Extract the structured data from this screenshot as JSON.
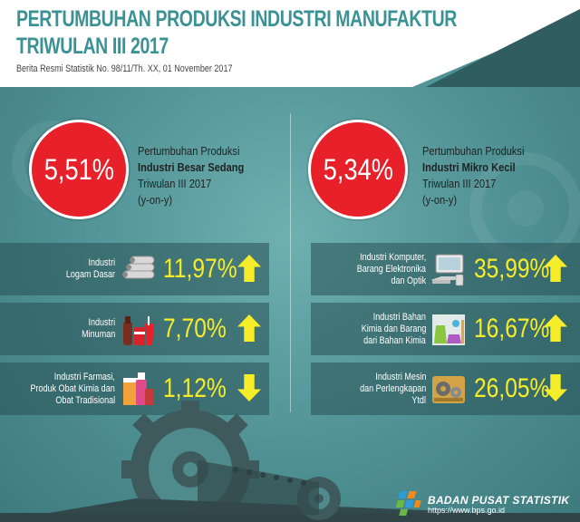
{
  "header": {
    "title_line1": "PERTUMBUHAN PRODUKSI INDUSTRI MANUFAKTUR",
    "title_line2": "TRIWULAN III 2017",
    "subtitle": "Berita Resmi Statistik No. 98/11/Th. XX, 01 November 2017"
  },
  "left": {
    "percent": "5,51%",
    "line1": "Pertumbuhan Produksi",
    "line2": "Industri Besar Sedang",
    "line3": "Triwulan III 2017",
    "line4": "(y-on-y)",
    "rows": [
      {
        "label": [
          "Industri",
          "Logam Dasar"
        ],
        "value": "11,97%",
        "direction": "up",
        "icon": "metal-pipes-icon"
      },
      {
        "label": [
          "Industri",
          "Minuman"
        ],
        "value": "7,70%",
        "direction": "up",
        "icon": "beverage-icon"
      },
      {
        "label": [
          "Industri Farmasi,",
          "Produk Obat Kimia dan",
          "Obat Tradisional"
        ],
        "value": "1,12%",
        "direction": "down",
        "icon": "medicine-icon"
      }
    ]
  },
  "right": {
    "percent": "5,34%",
    "line1": "Pertumbuhan Produksi",
    "line2": "Industri Mikro Kecil",
    "line3": "Triwulan III 2017",
    "line4": "(y-on-y)",
    "rows": [
      {
        "label": [
          "Industri Komputer,",
          "Barang Elektronika",
          "dan Optik"
        ],
        "value": "35,99%",
        "direction": "up",
        "icon": "computer-icon"
      },
      {
        "label": [
          "Industri Bahan",
          "Kimia dan Barang",
          "dari Bahan Kimia"
        ],
        "value": "16,67%",
        "direction": "up",
        "icon": "chemistry-icon"
      },
      {
        "label": [
          "Industri Mesin",
          "dan Perlengkapan",
          "Ytdl"
        ],
        "value": "26,05%",
        "direction": "down",
        "icon": "machine-icon"
      }
    ]
  },
  "footer": {
    "brand": "BADAN PUSAT STATISTIK",
    "url": "https://www.bps.go.id"
  },
  "colors": {
    "accent_red": "#e8202a",
    "value_yellow": "#f6ed2a",
    "title_teal": "#3a9295",
    "background_teal": "#4f9194"
  }
}
